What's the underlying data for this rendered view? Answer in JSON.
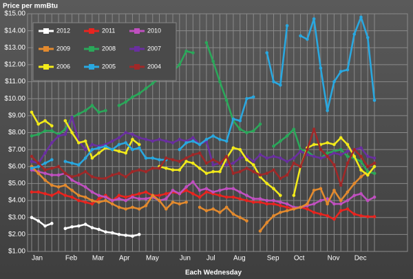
{
  "chart_data": {
    "type": "line",
    "y_label": "Price per mmBtu",
    "x_label": "Each Wednesday",
    "categories": [
      "Jan",
      null,
      null,
      null,
      null,
      "Feb",
      null,
      null,
      null,
      "Mar",
      null,
      null,
      null,
      "Apr",
      null,
      null,
      null,
      "May",
      null,
      null,
      null,
      null,
      "Jun",
      null,
      null,
      null,
      "Jul",
      null,
      null,
      null,
      "Aug",
      null,
      null,
      null,
      null,
      "Sep",
      null,
      null,
      null,
      "Oct",
      null,
      null,
      null,
      null,
      "Nov",
      null,
      null,
      null,
      "Dec",
      null,
      null,
      null
    ],
    "ylim": [
      1,
      15
    ],
    "yticks": [
      {
        "value": 1,
        "label": "$1.00"
      },
      {
        "value": 2,
        "label": "$2.00"
      },
      {
        "value": 3,
        "label": "$3.00"
      },
      {
        "value": 4,
        "label": "$4.00"
      },
      {
        "value": 5,
        "label": "$5.00"
      },
      {
        "value": 6,
        "label": "$6.00"
      },
      {
        "value": 7,
        "label": "$7.00"
      },
      {
        "value": 8,
        "label": "$8.00"
      },
      {
        "value": 9,
        "label": "$9.00"
      },
      {
        "value": 10,
        "label": "$10.00"
      },
      {
        "value": 11,
        "label": "$11.00"
      },
      {
        "value": 12,
        "label": "$12.00"
      },
      {
        "value": 13,
        "label": "$13.00"
      },
      {
        "value": 14,
        "label": "$14.00"
      },
      {
        "value": 15,
        "label": "$15.00"
      }
    ],
    "grid": true,
    "legend": "upper left",
    "series": [
      {
        "name": "2012",
        "color": "#ffffff",
        "values": [
          3.0,
          2.8,
          2.5,
          2.65,
          null,
          2.35,
          2.45,
          2.5,
          2.6,
          2.4,
          2.3,
          2.15,
          2.1,
          2.0,
          1.95,
          1.9,
          2.0,
          null,
          null,
          null,
          null,
          null,
          null,
          null,
          null,
          null,
          null,
          null,
          null,
          null,
          null,
          null,
          null,
          null,
          null,
          null,
          null,
          null,
          null,
          null,
          null,
          null,
          null,
          null,
          null,
          null,
          null,
          null,
          null,
          null,
          null,
          null
        ]
      },
      {
        "name": "2011",
        "color": "#e8241f",
        "values": [
          4.5,
          4.5,
          4.4,
          4.3,
          4.5,
          4.3,
          4.2,
          4.0,
          3.9,
          3.8,
          4.1,
          4.3,
          4.0,
          4.3,
          4.2,
          4.3,
          4.4,
          4.5,
          4.3,
          4.3,
          4.4,
          4.5,
          4.4,
          4.6,
          4.4,
          4.2,
          4.5,
          4.4,
          4.3,
          4.2,
          4.2,
          4.1,
          4.0,
          3.9,
          3.9,
          3.8,
          3.8,
          3.7,
          3.6,
          3.5,
          3.6,
          3.5,
          3.3,
          3.2,
          3.1,
          2.9,
          3.4,
          3.5,
          3.2,
          3.1,
          3.05,
          3.05
        ]
      },
      {
        "name": "2010",
        "color": "#c050c0",
        "values": [
          5.8,
          5.7,
          5.6,
          5.5,
          5.5,
          5.6,
          5.2,
          5.0,
          4.8,
          4.5,
          4.3,
          4.2,
          4.0,
          4.1,
          4.0,
          4.2,
          4.1,
          4.1,
          4.2,
          4.0,
          4.1,
          4.6,
          4.4,
          4.8,
          5.1,
          4.6,
          4.7,
          4.5,
          4.6,
          4.7,
          4.7,
          4.5,
          4.3,
          4.1,
          4.1,
          4.0,
          4.0,
          3.9,
          3.8,
          3.6,
          3.6,
          3.7,
          3.8,
          4.0,
          4.1,
          3.8,
          3.8,
          4.0,
          4.3,
          4.4,
          4.0,
          4.2
        ]
      },
      {
        "name": "2009",
        "color": "#e38a2e",
        "values": [
          6.0,
          5.6,
          5.2,
          4.9,
          4.8,
          4.9,
          4.6,
          4.3,
          4.2,
          4.0,
          3.9,
          4.0,
          3.8,
          3.6,
          3.5,
          3.6,
          3.5,
          3.7,
          4.3,
          4.0,
          3.5,
          3.9,
          3.8,
          3.9,
          null,
          3.6,
          3.4,
          3.5,
          3.3,
          3.6,
          3.2,
          3.0,
          2.8,
          null,
          2.2,
          2.7,
          3.1,
          3.3,
          3.4,
          3.5,
          3.6,
          3.8,
          4.6,
          4.7,
          3.8,
          4.6,
          4.0,
          4.5,
          5.0,
          5.4,
          5.7,
          5.6
        ]
      },
      {
        "name": "2008",
        "color": "#2aa85a",
        "values": [
          7.8,
          7.9,
          8.1,
          8.1,
          7.9,
          8.2,
          8.9,
          9.1,
          9.3,
          9.6,
          9.2,
          9.3,
          null,
          9.6,
          9.8,
          10.1,
          10.3,
          10.6,
          10.9,
          11.2,
          11.4,
          11.6,
          12.0,
          12.8,
          12.7,
          null,
          13.3,
          12.2,
          11.0,
          9.9,
          8.7,
          8.2,
          8.0,
          8.1,
          8.5,
          null,
          7.2,
          7.5,
          7.8,
          8.2,
          7.0,
          6.9,
          6.6,
          6.5,
          6.8,
          6.9,
          7.0,
          6.6,
          6.5,
          6.3,
          5.7,
          5.6
        ]
      },
      {
        "name": "2007",
        "color": "#6a2fa0",
        "values": [
          6.3,
          6.2,
          6.8,
          7.4,
          7.8,
          7.9,
          8.9,
          7.5,
          7.0,
          7.3,
          7.2,
          7.3,
          7.5,
          7.7,
          8.0,
          7.9,
          7.7,
          7.6,
          7.5,
          7.6,
          7.5,
          7.4,
          7.6,
          7.5,
          7.7,
          7.3,
          7.5,
          6.1,
          6.2,
          6.1,
          6.2,
          6.5,
          6.6,
          6.3,
          6.7,
          6.5,
          6.6,
          6.5,
          6.3,
          6.5,
          6.9,
          6.7,
          6.6,
          6.5,
          6.6,
          6.8,
          6.7,
          6.9,
          7.0,
          7.1,
          6.6,
          6.5
        ]
      },
      {
        "name": "2006",
        "color": "#f2ea1a",
        "values": [
          9.2,
          8.5,
          8.7,
          8.4,
          null,
          8.7,
          8.0,
          7.4,
          7.5,
          6.5,
          6.8,
          7.1,
          7.0,
          6.9,
          6.8,
          7.6,
          7.3,
          null,
          null,
          6.0,
          5.9,
          5.8,
          5.8,
          6.3,
          6.2,
          5.9,
          5.6,
          5.7,
          5.7,
          6.5,
          7.1,
          7.0,
          6.4,
          6.1,
          5.4,
          5.0,
          4.7,
          4.3,
          null,
          4.3,
          6.0,
          7.1,
          7.3,
          7.3,
          7.4,
          7.3,
          7.7,
          7.3,
          6.6,
          5.8,
          5.5,
          6.0
        ]
      },
      {
        "name": "2005",
        "color": "#29a8e0",
        "values": [
          5.9,
          6.0,
          6.2,
          6.4,
          null,
          6.3,
          6.2,
          6.1,
          6.5,
          7.0,
          7.1,
          7.2,
          7.0,
          7.3,
          7.4,
          7.0,
          7.1,
          6.5,
          6.5,
          6.4,
          6.4,
          null,
          7.0,
          7.4,
          7.5,
          7.3,
          7.6,
          7.8,
          7.6,
          7.5,
          8.8,
          8.7,
          10.0,
          10.1,
          null,
          12.7,
          11.0,
          10.8,
          14.3,
          null,
          13.7,
          13.5,
          14.7,
          11.8,
          9.3,
          11.0,
          11.6,
          11.7,
          13.8,
          14.8,
          13.6,
          9.9
        ]
      },
      {
        "name": "2004",
        "color": "#a02828",
        "values": [
          6.6,
          6.2,
          5.8,
          5.9,
          6.0,
          5.6,
          5.4,
          5.5,
          5.7,
          5.4,
          5.3,
          5.3,
          5.5,
          5.6,
          5.4,
          5.7,
          5.8,
          5.7,
          5.9,
          5.9,
          6.5,
          6.4,
          6.3,
          6.5,
          6.7,
          6.8,
          6.2,
          6.4,
          6.2,
          6.6,
          5.6,
          5.7,
          5.9,
          5.7,
          5.5,
          5.6,
          5.8,
          5.3,
          5.5,
          6.2,
          6.0,
          7.0,
          8.2,
          7.0,
          6.6,
          6.1,
          4.9,
          6.2,
          7.0,
          6.6,
          6.0,
          6.2
        ]
      }
    ]
  }
}
